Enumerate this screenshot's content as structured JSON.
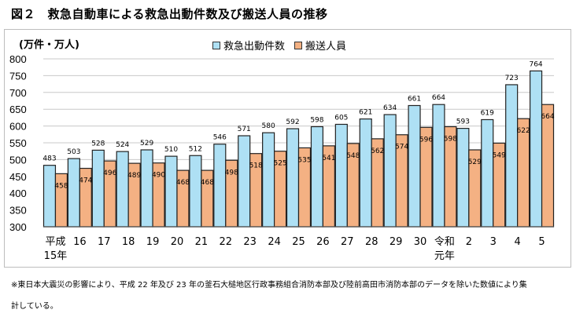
{
  "title": "図２　救急自動車による救急出動件数及び搬送人員の推移",
  "colors": {
    "dispatch": "#aee0f4",
    "transport": "#f4b183",
    "stroke": "#222222",
    "grid": "#c8c8c8"
  },
  "chart_data": {
    "type": "bar",
    "title": "図２　救急自動車による救急出動件数及び搬送人員の推移",
    "unit_label": "(万件・万人)",
    "categories": [
      [
        "平成",
        "15年"
      ],
      [
        "16"
      ],
      [
        "17"
      ],
      [
        "18"
      ],
      [
        "19"
      ],
      [
        "20"
      ],
      [
        "21"
      ],
      [
        "22"
      ],
      [
        "23"
      ],
      [
        "24"
      ],
      [
        "25"
      ],
      [
        "26"
      ],
      [
        "27"
      ],
      [
        "28"
      ],
      [
        "29"
      ],
      [
        "30"
      ],
      [
        "令和",
        "元年"
      ],
      [
        "2"
      ],
      [
        "3"
      ],
      [
        "4"
      ],
      [
        "5"
      ]
    ],
    "series": [
      {
        "name": "救急出動件数",
        "values": [
          483,
          503,
          528,
          524,
          529,
          510,
          512,
          546,
          571,
          580,
          592,
          598,
          605,
          621,
          634,
          661,
          664,
          593,
          619,
          723,
          764
        ]
      },
      {
        "name": "搬送人員",
        "values": [
          458,
          474,
          496,
          489,
          490,
          468,
          468,
          498,
          518,
          525,
          535,
          541,
          548,
          562,
          574,
          596,
          598,
          529,
          549,
          622,
          664
        ]
      }
    ],
    "ylim": [
      300,
      800
    ],
    "yticks": [
      "800",
      "750",
      "700",
      "650",
      "600",
      "550",
      "500",
      "450",
      "400",
      "350",
      "300"
    ],
    "ytick_values": [
      800,
      750,
      700,
      650,
      600,
      550,
      500,
      450,
      400,
      350,
      300
    ],
    "grid": true,
    "legend": "top-center"
  },
  "notes": [
    "※東日本大震災の影響により、平成 22 年及び 23 年の釜石大槌地区行政事務組合消防本部及び陸前高田市消防本部のデータを除いた数値により集",
    "計している。"
  ]
}
